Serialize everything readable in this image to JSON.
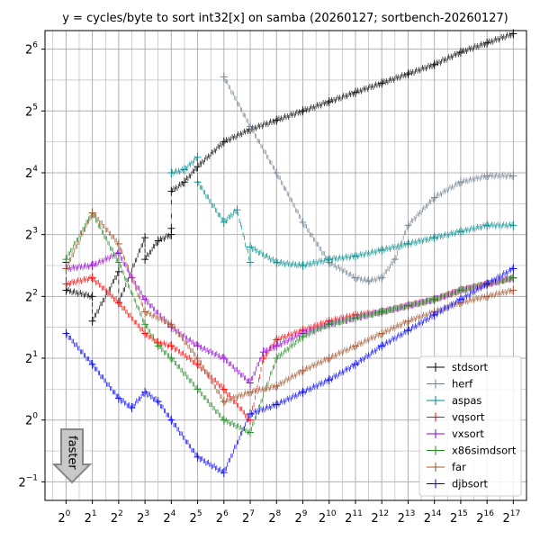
{
  "chart_data": {
    "type": "scatter",
    "title": "y = cycles/byte to sort int32[x] on samba (20260127; sortbench-20260127)",
    "xlabel": "",
    "ylabel": "",
    "x_scale": "log2",
    "y_scale": "log2",
    "x_ticks": [
      {
        "base": "2",
        "exp": "0"
      },
      {
        "base": "2",
        "exp": "1"
      },
      {
        "base": "2",
        "exp": "2"
      },
      {
        "base": "2",
        "exp": "3"
      },
      {
        "base": "2",
        "exp": "4"
      },
      {
        "base": "2",
        "exp": "5"
      },
      {
        "base": "2",
        "exp": "6"
      },
      {
        "base": "2",
        "exp": "7"
      },
      {
        "base": "2",
        "exp": "8"
      },
      {
        "base": "2",
        "exp": "9"
      },
      {
        "base": "2",
        "exp": "10"
      },
      {
        "base": "2",
        "exp": "11"
      },
      {
        "base": "2",
        "exp": "12"
      },
      {
        "base": "2",
        "exp": "13"
      },
      {
        "base": "2",
        "exp": "14"
      },
      {
        "base": "2",
        "exp": "15"
      },
      {
        "base": "2",
        "exp": "16"
      },
      {
        "base": "2",
        "exp": "17"
      }
    ],
    "y_ticks": [
      {
        "base": "2",
        "exp": "−1"
      },
      {
        "base": "2",
        "exp": "0"
      },
      {
        "base": "2",
        "exp": "1"
      },
      {
        "base": "2",
        "exp": "2"
      },
      {
        "base": "2",
        "exp": "3"
      },
      {
        "base": "2",
        "exp": "4"
      },
      {
        "base": "2",
        "exp": "5"
      },
      {
        "base": "2",
        "exp": "6"
      }
    ],
    "xlim_log2": [
      -0.8,
      17.5
    ],
    "ylim_log2": [
      -1.3,
      6.3
    ],
    "grid": true,
    "legend_position": "bottom-right",
    "annotation": "faster",
    "series": [
      {
        "name": "stdsort",
        "color": "#000000",
        "points": [
          [
            0,
            2.55
          ],
          [
            0,
            2.1
          ],
          [
            1,
            2.0
          ],
          [
            1,
            1.6
          ],
          [
            2,
            2.4
          ],
          [
            2,
            1.9
          ],
          [
            3,
            2.95
          ],
          [
            3,
            2.6
          ],
          [
            3.5,
            2.9
          ],
          [
            4,
            3.0
          ],
          [
            4,
            3.1
          ],
          [
            4,
            3.7
          ],
          [
            4.5,
            3.85
          ],
          [
            5,
            4.1
          ],
          [
            6,
            4.5
          ],
          [
            7,
            4.7
          ],
          [
            8,
            4.85
          ],
          [
            9,
            5.0
          ],
          [
            10,
            5.15
          ],
          [
            11,
            5.3
          ],
          [
            12,
            5.45
          ],
          [
            13,
            5.6
          ],
          [
            14,
            5.75
          ],
          [
            15,
            5.95
          ],
          [
            16,
            6.1
          ],
          [
            17,
            6.25
          ]
        ]
      },
      {
        "name": "herf",
        "color": "#708090",
        "points": [
          [
            6,
            5.55
          ],
          [
            7,
            4.75
          ],
          [
            8,
            4.0
          ],
          [
            9,
            3.2
          ],
          [
            10,
            2.55
          ],
          [
            11,
            2.3
          ],
          [
            11.5,
            2.25
          ],
          [
            12,
            2.3
          ],
          [
            12.5,
            2.6
          ],
          [
            13,
            3.15
          ],
          [
            14,
            3.6
          ],
          [
            15,
            3.85
          ],
          [
            16,
            3.95
          ],
          [
            17,
            3.95
          ]
        ]
      },
      {
        "name": "aspas",
        "color": "#008b8b",
        "points": [
          [
            4,
            4.0
          ],
          [
            4.5,
            4.05
          ],
          [
            5,
            4.25
          ],
          [
            5,
            3.85
          ],
          [
            6,
            3.2
          ],
          [
            6.5,
            3.4
          ],
          [
            7,
            2.55
          ],
          [
            7,
            2.8
          ],
          [
            8,
            2.55
          ],
          [
            9,
            2.5
          ],
          [
            10,
            2.6
          ],
          [
            11,
            2.65
          ],
          [
            12,
            2.75
          ],
          [
            13,
            2.85
          ],
          [
            14,
            2.95
          ],
          [
            15,
            3.05
          ],
          [
            16,
            3.15
          ],
          [
            17,
            3.15
          ]
        ]
      },
      {
        "name": "vqsort",
        "color": "#ff0000",
        "points": [
          [
            0,
            2.2
          ],
          [
            1,
            2.3
          ],
          [
            2,
            1.9
          ],
          [
            3,
            1.4
          ],
          [
            3.5,
            1.25
          ],
          [
            4,
            1.2
          ],
          [
            5,
            0.9
          ],
          [
            6,
            0.5
          ],
          [
            7,
            0.0
          ],
          [
            7.5,
            1.0
          ],
          [
            8,
            1.3
          ],
          [
            9,
            1.45
          ],
          [
            10,
            1.6
          ],
          [
            11,
            1.7
          ],
          [
            12,
            1.75
          ],
          [
            13,
            1.85
          ],
          [
            14,
            1.95
          ],
          [
            15,
            2.1
          ],
          [
            16,
            2.2
          ],
          [
            17,
            2.3
          ]
        ]
      },
      {
        "name": "vxsort",
        "color": "#9400d3",
        "points": [
          [
            0,
            2.45
          ],
          [
            1,
            2.5
          ],
          [
            2,
            2.7
          ],
          [
            2.5,
            2.3
          ],
          [
            3,
            1.95
          ],
          [
            4,
            1.5
          ],
          [
            5,
            1.2
          ],
          [
            6,
            1.0
          ],
          [
            7,
            0.6
          ],
          [
            7.5,
            1.1
          ],
          [
            8,
            1.2
          ],
          [
            9,
            1.4
          ],
          [
            10,
            1.55
          ],
          [
            11,
            1.65
          ],
          [
            12,
            1.75
          ],
          [
            13,
            1.85
          ],
          [
            14,
            1.95
          ],
          [
            15,
            2.1
          ],
          [
            16,
            2.2
          ],
          [
            17,
            2.3
          ]
        ]
      },
      {
        "name": "x86simdsort",
        "color": "#228b22",
        "points": [
          [
            0,
            2.6
          ],
          [
            1,
            3.35
          ],
          [
            2,
            2.55
          ],
          [
            3,
            1.55
          ],
          [
            3.5,
            1.2
          ],
          [
            4,
            1.0
          ],
          [
            5,
            0.5
          ],
          [
            6,
            0.0
          ],
          [
            7,
            -0.2
          ],
          [
            8,
            1.0
          ],
          [
            9,
            1.35
          ],
          [
            10,
            1.55
          ],
          [
            11,
            1.65
          ],
          [
            12,
            1.75
          ],
          [
            13,
            1.85
          ],
          [
            14,
            1.95
          ],
          [
            15,
            2.1
          ],
          [
            16,
            2.2
          ],
          [
            17,
            2.3
          ]
        ]
      },
      {
        "name": "far",
        "color": "#a0522d",
        "points": [
          [
            0,
            2.45
          ],
          [
            1,
            3.35
          ],
          [
            2,
            2.85
          ],
          [
            3,
            1.75
          ],
          [
            4,
            1.55
          ],
          [
            5,
            1.0
          ],
          [
            6,
            0.3
          ],
          [
            7,
            0.45
          ],
          [
            8,
            0.55
          ],
          [
            9,
            0.8
          ],
          [
            10,
            1.0
          ],
          [
            11,
            1.2
          ],
          [
            12,
            1.4
          ],
          [
            13,
            1.6
          ],
          [
            14,
            1.75
          ],
          [
            15,
            1.9
          ],
          [
            16,
            2.0
          ],
          [
            17,
            2.1
          ]
        ]
      },
      {
        "name": "djbsort",
        "color": "#0000ff",
        "points": [
          [
            0,
            1.4
          ],
          [
            1,
            0.9
          ],
          [
            2,
            0.35
          ],
          [
            2.5,
            0.2
          ],
          [
            3,
            0.45
          ],
          [
            3.5,
            0.3
          ],
          [
            4,
            0.0
          ],
          [
            5,
            -0.6
          ],
          [
            6,
            -0.85
          ],
          [
            7,
            0.1
          ],
          [
            8,
            0.25
          ],
          [
            9,
            0.45
          ],
          [
            10,
            0.65
          ],
          [
            11,
            0.9
          ],
          [
            12,
            1.2
          ],
          [
            13,
            1.45
          ],
          [
            14,
            1.7
          ],
          [
            15,
            1.95
          ],
          [
            16,
            2.2
          ],
          [
            17,
            2.45
          ]
        ]
      }
    ]
  }
}
